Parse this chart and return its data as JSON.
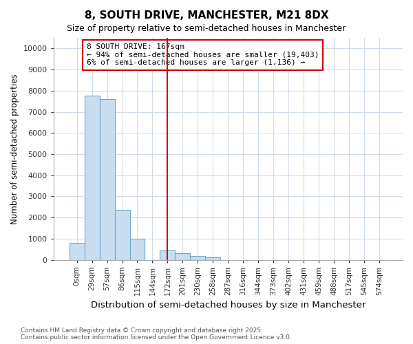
{
  "title": "8, SOUTH DRIVE, MANCHESTER, M21 8DX",
  "subtitle": "Size of property relative to semi-detached houses in Manchester",
  "xlabel": "Distribution of semi-detached houses by size in Manchester",
  "ylabel": "Number of semi-detached properties",
  "bin_labels": [
    "0sqm",
    "29sqm",
    "57sqm",
    "86sqm",
    "115sqm",
    "144sqm",
    "172sqm",
    "201sqm",
    "230sqm",
    "258sqm",
    "287sqm",
    "316sqm",
    "344sqm",
    "373sqm",
    "402sqm",
    "431sqm",
    "459sqm",
    "488sqm",
    "517sqm",
    "545sqm",
    "574sqm"
  ],
  "bar_heights": [
    800,
    7750,
    7600,
    2350,
    1000,
    0,
    450,
    300,
    175,
    100,
    0,
    0,
    0,
    0,
    0,
    0,
    0,
    0,
    0,
    0,
    0
  ],
  "bar_color": "#c8ddf0",
  "bar_edge_color": "#6aaad4",
  "vline_index": 6,
  "vline_color": "#cc0000",
  "annotation_title": "8 SOUTH DRIVE: 167sqm",
  "annotation_line1": "← 94% of semi-detached houses are smaller (19,403)",
  "annotation_line2": "6% of semi-detached houses are larger (1,136) →",
  "annotation_box_color": "#cc0000",
  "ylim": [
    0,
    10500
  ],
  "yticks": [
    0,
    1000,
    2000,
    3000,
    4000,
    5000,
    6000,
    7000,
    8000,
    9000,
    10000
  ],
  "footer_line1": "Contains HM Land Registry data © Crown copyright and database right 2025.",
  "footer_line2": "Contains public sector information licensed under the Open Government Licence v3.0.",
  "bg_color": "#ffffff",
  "plot_bg_color": "#ffffff",
  "grid_color": "#d0dce8"
}
